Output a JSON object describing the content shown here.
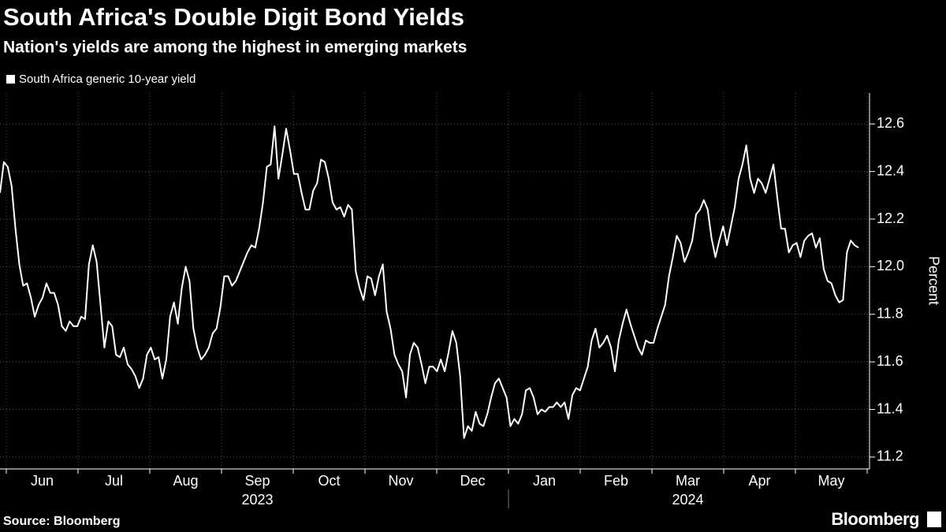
{
  "chart_data": {
    "type": "line",
    "title": "South Africa's Double Digit Bond Yields",
    "subtitle": "Nation's yields are among the highest in emerging markets",
    "series": [
      {
        "name": "South Africa generic 10-year yield",
        "color": "#ffffff",
        "values": [
          12.31,
          12.44,
          12.42,
          12.34,
          12.16,
          12.01,
          11.92,
          11.93,
          11.87,
          11.79,
          11.84,
          11.87,
          11.93,
          11.89,
          11.89,
          11.84,
          11.75,
          11.73,
          11.77,
          11.75,
          11.75,
          11.79,
          11.78,
          12.01,
          12.09,
          12.02,
          11.84,
          11.66,
          11.77,
          11.75,
          11.63,
          11.62,
          11.66,
          11.59,
          11.57,
          11.54,
          11.49,
          11.53,
          11.63,
          11.66,
          11.61,
          11.62,
          11.53,
          11.61,
          11.79,
          11.85,
          11.76,
          11.91,
          12.0,
          11.94,
          11.74,
          11.66,
          11.61,
          11.63,
          11.66,
          11.72,
          11.74,
          11.83,
          11.96,
          11.96,
          11.92,
          11.94,
          11.98,
          12.02,
          12.06,
          12.09,
          12.08,
          12.16,
          12.27,
          12.42,
          12.43,
          12.59,
          12.37,
          12.47,
          12.58,
          12.49,
          12.39,
          12.39,
          12.31,
          12.24,
          12.24,
          12.32,
          12.35,
          12.45,
          12.44,
          12.37,
          12.27,
          12.24,
          12.25,
          12.21,
          12.26,
          12.24,
          11.98,
          11.91,
          11.86,
          11.96,
          11.95,
          11.88,
          11.96,
          12.01,
          11.81,
          11.74,
          11.63,
          11.59,
          11.56,
          11.45,
          11.63,
          11.68,
          11.66,
          11.59,
          11.51,
          11.58,
          11.58,
          11.56,
          11.61,
          11.56,
          11.64,
          11.73,
          11.68,
          11.54,
          11.28,
          11.33,
          11.31,
          11.39,
          11.34,
          11.33,
          11.38,
          11.45,
          11.51,
          11.53,
          11.49,
          11.45,
          11.33,
          11.36,
          11.34,
          11.38,
          11.48,
          11.49,
          11.45,
          11.38,
          11.4,
          11.39,
          11.41,
          11.41,
          11.43,
          11.41,
          11.43,
          11.36,
          11.46,
          11.49,
          11.48,
          11.53,
          11.58,
          11.69,
          11.74,
          11.66,
          11.68,
          11.71,
          11.66,
          11.56,
          11.69,
          11.76,
          11.82,
          11.76,
          11.71,
          11.66,
          11.63,
          11.69,
          11.68,
          11.68,
          11.74,
          11.79,
          11.84,
          11.96,
          12.04,
          12.13,
          12.1,
          12.02,
          12.06,
          12.11,
          12.22,
          12.24,
          12.28,
          12.24,
          12.12,
          12.04,
          12.11,
          12.17,
          12.09,
          12.17,
          12.25,
          12.37,
          12.43,
          12.51,
          12.37,
          12.31,
          12.37,
          12.35,
          12.31,
          12.37,
          12.43,
          12.29,
          12.16,
          12.16,
          12.06,
          12.09,
          12.1,
          12.04,
          12.11,
          12.13,
          12.14,
          12.08,
          12.12,
          11.99,
          11.94,
          11.93,
          11.88,
          11.85,
          11.86,
          12.06,
          12.11,
          12.09,
          12.08
        ]
      }
    ],
    "months": [
      "Jun",
      "Jul",
      "Aug",
      "Sep",
      "Oct",
      "Nov",
      "Dec",
      "Jan",
      "Feb",
      "Mar",
      "Apr",
      "May"
    ],
    "years": [
      "2023",
      "2024"
    ],
    "ylabel": "Percent",
    "ylim": [
      11.15,
      12.73
    ],
    "yticks": [
      11.2,
      11.4,
      11.6,
      11.8,
      {
        "value": 12,
        "label": "12.0"
      },
      12.2,
      12.4,
      12.6
    ],
    "grid": true
  },
  "footer": {
    "source": "Source: Bloomberg",
    "logo": "Bloomberg"
  }
}
